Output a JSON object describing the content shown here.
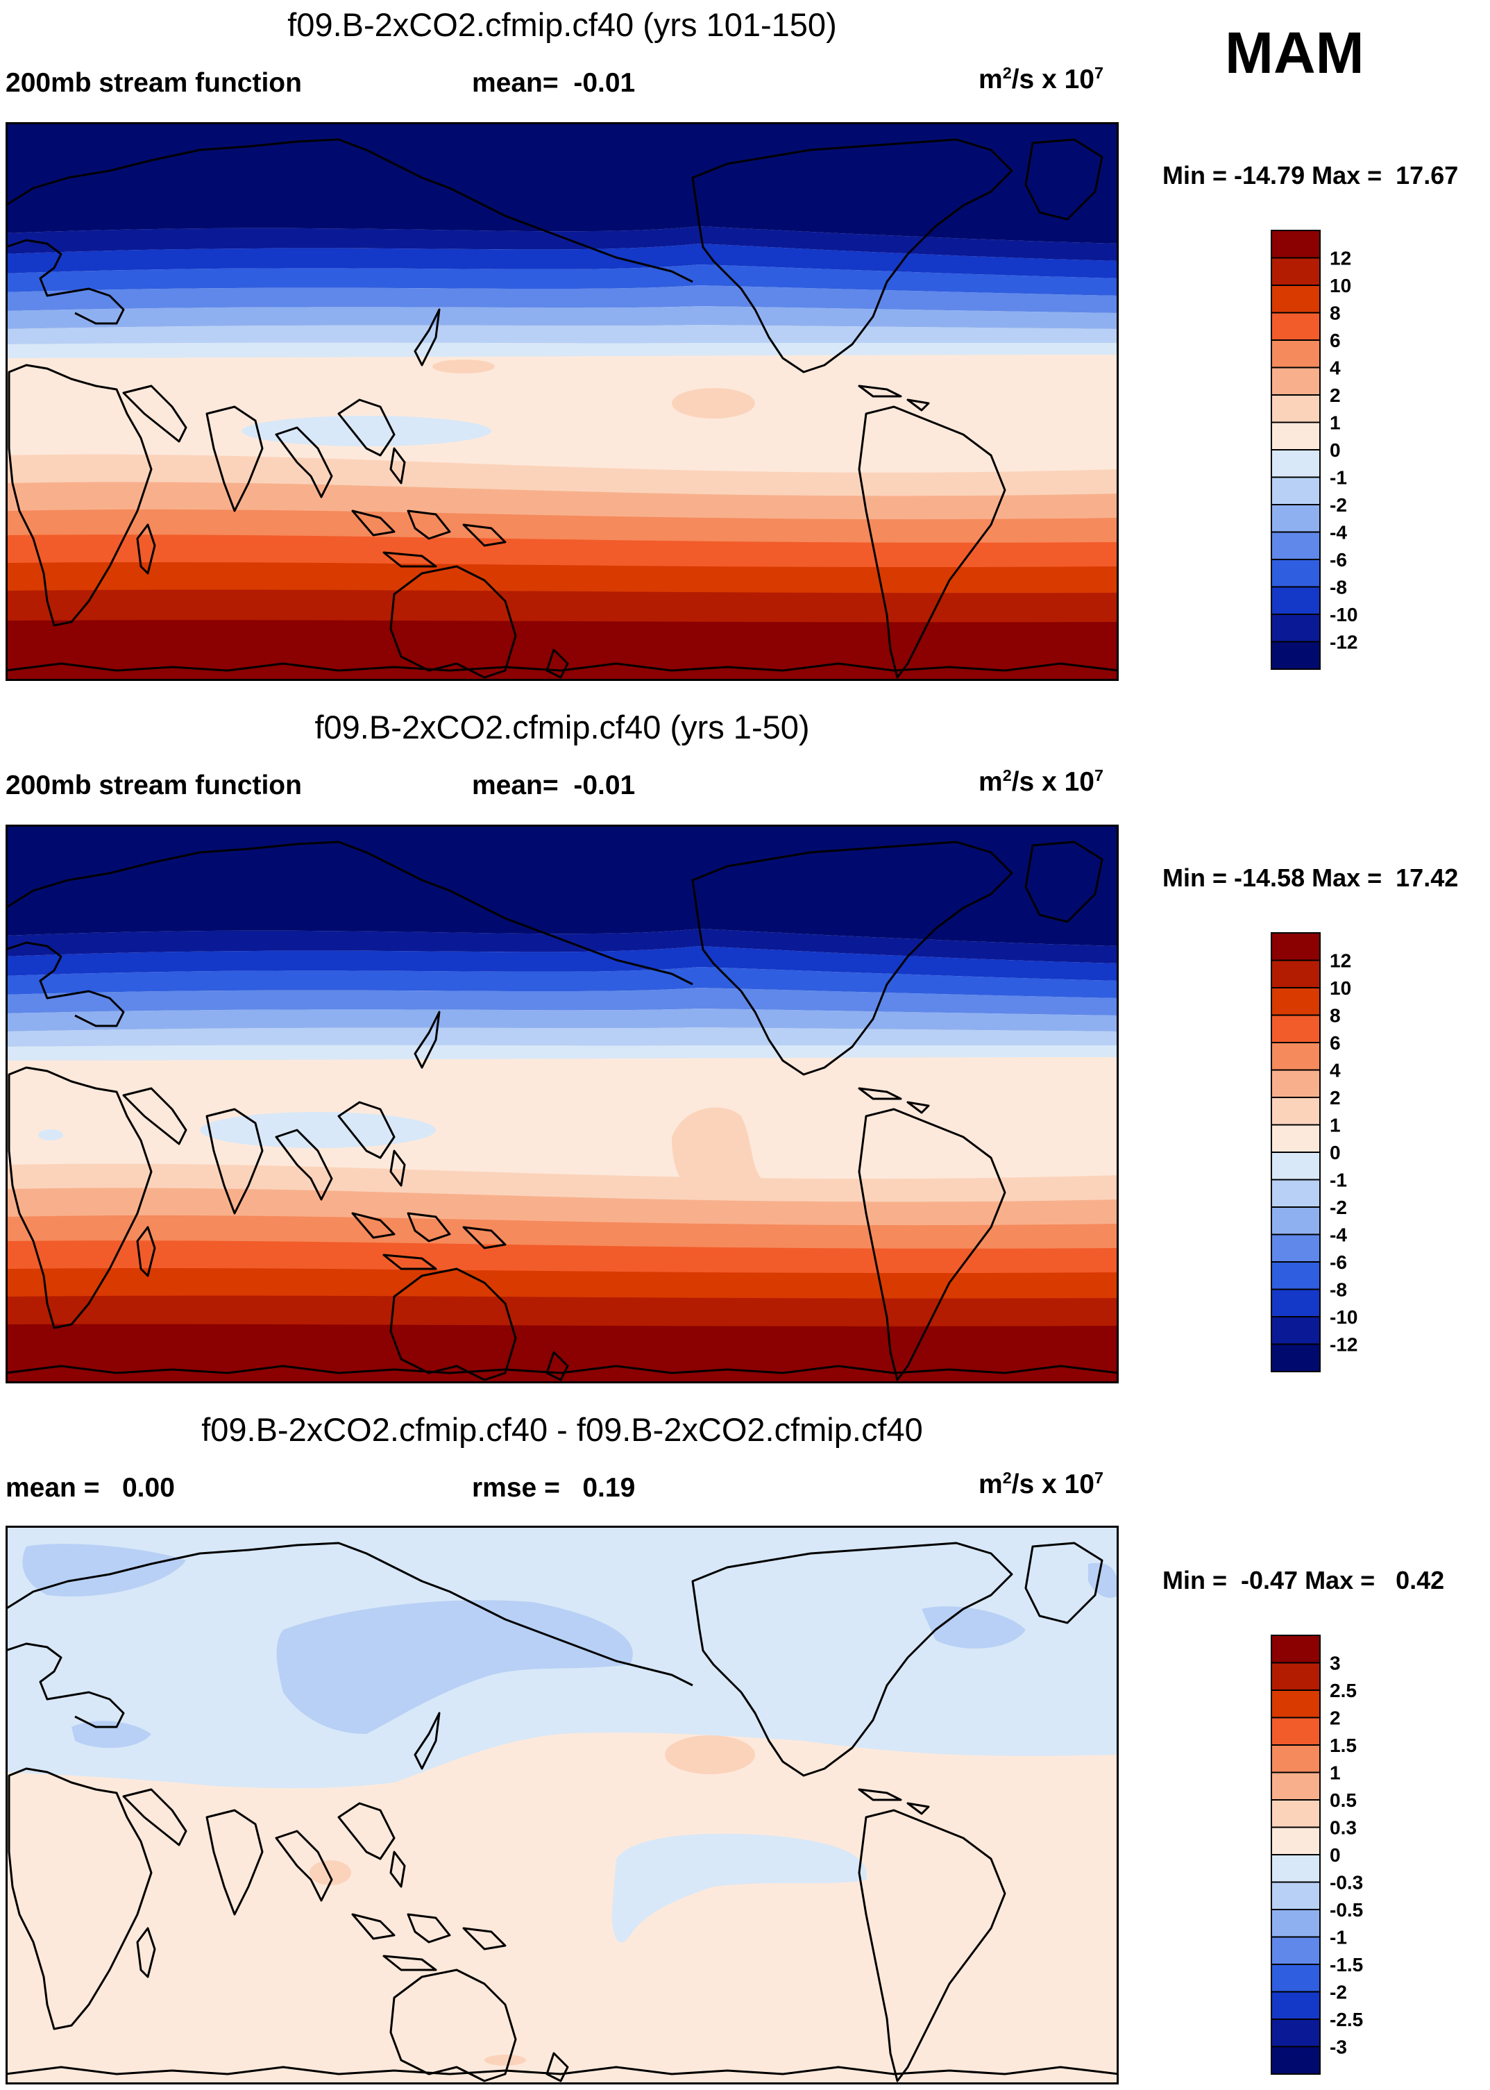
{
  "season": "MAM",
  "panels": [
    {
      "title": "f09.B-2xCO2.cfmip.cf40 (yrs 101-150)",
      "left_label": "200mb stream function",
      "center_label": "mean=  -0.01",
      "units_base": "m",
      "units_exp1": "2",
      "units_mid": "/s x 10",
      "units_exp2": "7",
      "minmax": "Min = -14.79 Max =  17.67",
      "colorbar": {
        "labels": [
          "12",
          "10",
          "8",
          "6",
          "4",
          "2",
          "1",
          "0",
          "-1",
          "-2",
          "-4",
          "-6",
          "-8",
          "-10",
          "-12"
        ],
        "colors": [
          "#8b0000",
          "#b31c00",
          "#d93a00",
          "#f25c2a",
          "#f58a5c",
          "#f8b08c",
          "#fbd3bb",
          "#fde9db",
          "#d8e8f8",
          "#b8d0f5",
          "#8fb0f0",
          "#5f88ea",
          "#2f5ee0",
          "#1438c8",
          "#0a1a96",
          "#000a6e"
        ]
      }
    },
    {
      "title": "f09.B-2xCO2.cfmip.cf40 (yrs 1-50)",
      "left_label": "200mb stream function",
      "center_label": "mean=  -0.01",
      "units_base": "m",
      "units_exp1": "2",
      "units_mid": "/s x 10",
      "units_exp2": "7",
      "minmax": "Min = -14.58 Max =  17.42",
      "colorbar": {
        "labels": [
          "12",
          "10",
          "8",
          "6",
          "4",
          "2",
          "1",
          "0",
          "-1",
          "-2",
          "-4",
          "-6",
          "-8",
          "-10",
          "-12"
        ],
        "colors": [
          "#8b0000",
          "#b31c00",
          "#d93a00",
          "#f25c2a",
          "#f58a5c",
          "#f8b08c",
          "#fbd3bb",
          "#fde9db",
          "#d8e8f8",
          "#b8d0f5",
          "#8fb0f0",
          "#5f88ea",
          "#2f5ee0",
          "#1438c8",
          "#0a1a96",
          "#000a6e"
        ]
      }
    },
    {
      "title": "f09.B-2xCO2.cfmip.cf40 - f09.B-2xCO2.cfmip.cf40",
      "left_label": "mean =   0.00",
      "center_label": "rmse =   0.19",
      "units_base": "m",
      "units_exp1": "2",
      "units_mid": "/s x 10",
      "units_exp2": "7",
      "minmax": "Min =  -0.47 Max =   0.42",
      "colorbar": {
        "labels": [
          "3",
          "2.5",
          "2",
          "1.5",
          "1",
          "0.5",
          "0.3",
          "0",
          "-0.3",
          "-0.5",
          "-1",
          "-1.5",
          "-2",
          "-2.5",
          "-3"
        ],
        "colors": [
          "#8b0000",
          "#b31c00",
          "#d93a00",
          "#f25c2a",
          "#f58a5c",
          "#f8b08c",
          "#fbd3bb",
          "#fde9db",
          "#d8e8f8",
          "#b8d0f5",
          "#8fb0f0",
          "#5f88ea",
          "#2f5ee0",
          "#1438c8",
          "#0a1a96",
          "#000a6e"
        ]
      }
    }
  ]
}
